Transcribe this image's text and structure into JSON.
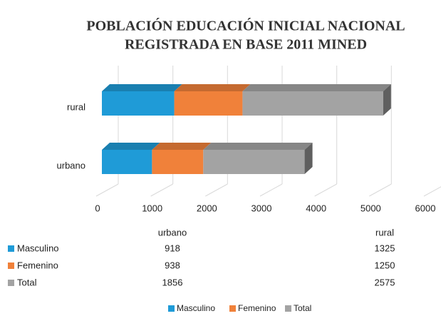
{
  "chart_data": {
    "type": "bar3d_stacked_horizontal",
    "title": [
      "POBLACIÓN EDUCACIÓN INICIAL NACIONAL",
      "REGISTRADA EN BASE 2011 MINED"
    ],
    "categories": [
      "urbano",
      "rural"
    ],
    "series": [
      {
        "name": "Masculino",
        "color": "#1f9bd7",
        "values": [
          918,
          1325
        ]
      },
      {
        "name": "Femenino",
        "color": "#f0813a",
        "values": [
          938,
          1250
        ]
      },
      {
        "name": "Total",
        "color": "#a3a3a3",
        "values": [
          1856,
          2575
        ]
      }
    ],
    "xlim": [
      0,
      6000
    ],
    "xticks": [
      0,
      1000,
      2000,
      3000,
      4000,
      5000,
      6000
    ],
    "grid": true,
    "legend": "bottom",
    "data_table": true
  }
}
